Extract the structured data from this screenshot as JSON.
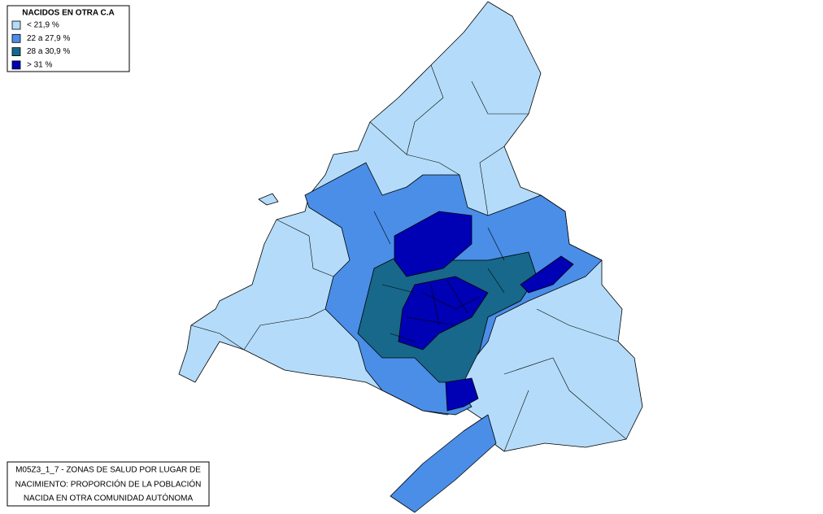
{
  "legend": {
    "title": "NACIDOS EN OTRA C.A",
    "items": [
      {
        "label": "< 21,9 %",
        "color": "#b4dcfa"
      },
      {
        "label": "22 a 27,9 %",
        "color": "#4a8ee8"
      },
      {
        "label": "28 a 30,9 %",
        "color": "#17688a"
      },
      {
        "label": "> 31 %",
        "color": "#0000b4"
      }
    ]
  },
  "caption": {
    "lines": [
      "M05Z3_1_7 - ZONAS DE SALUD POR LUGAR DE",
      "NACIMIENTO: PROPORCIÓN DE LA POBLACIÓN",
      "NACIDA EN OTRA COMUNIDAD AUTÓNOMA"
    ]
  }
}
